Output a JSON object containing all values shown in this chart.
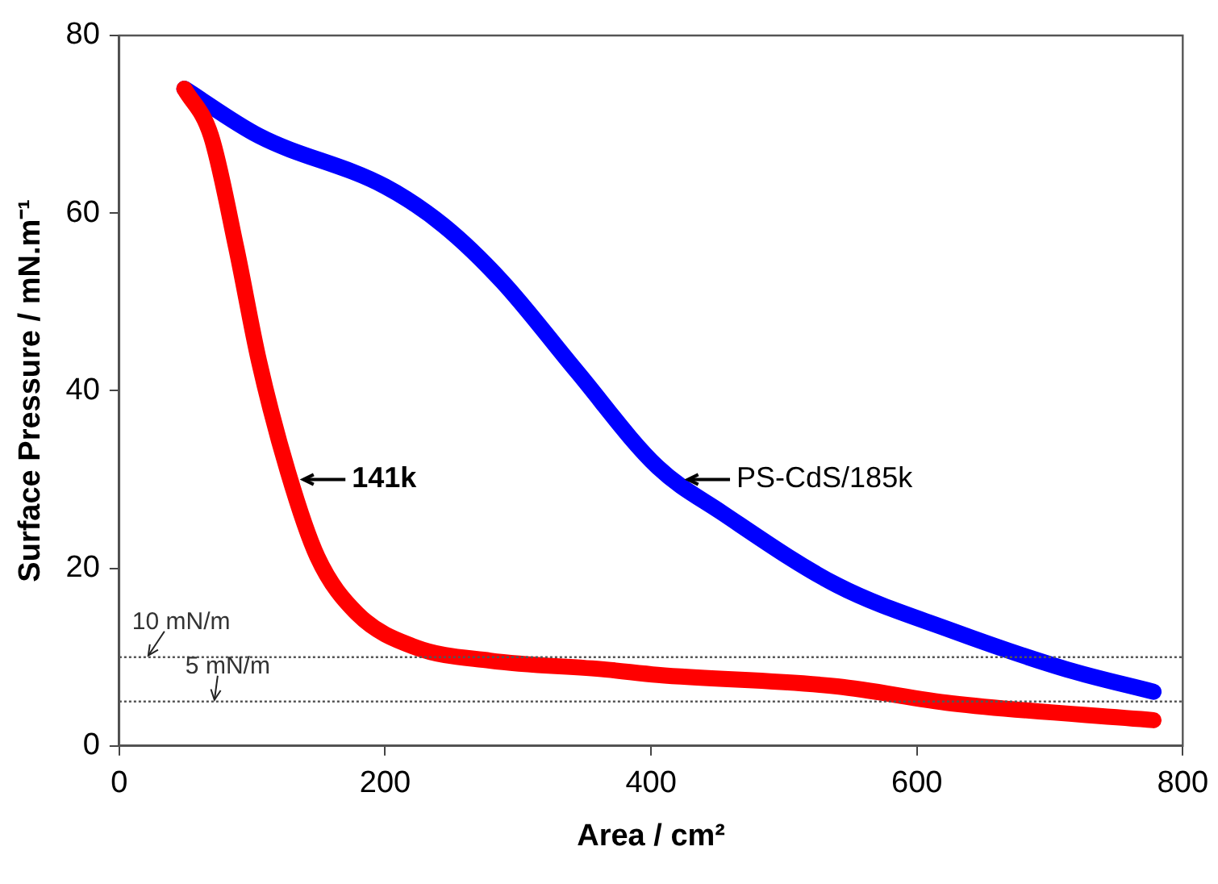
{
  "chart_data": {
    "type": "line",
    "xlabel": "Area / cm²",
    "ylabel": "Surface Pressure / mN.m⁻¹",
    "xlim": [
      0,
      800
    ],
    "xticks": [
      0,
      200,
      400,
      600,
      800
    ],
    "ylim": [
      0,
      80
    ],
    "yticks": [
      0,
      20,
      40,
      60,
      80
    ],
    "grid": false,
    "legend": false,
    "series": [
      {
        "name": "141k",
        "color": "#ff0000",
        "x": [
          49,
          69,
          88,
          105,
          127,
          149,
          179,
          223,
          279,
          366,
          405,
          540,
          626,
          778
        ],
        "values": [
          74,
          68.7,
          56.1,
          43.4,
          30.8,
          21.3,
          14.9,
          11.1,
          9.6,
          8.6,
          8.0,
          6.7,
          4.8,
          2.9
        ]
      },
      {
        "name": "PS-CdS/185k",
        "color": "#0000ff",
        "x": [
          49,
          105,
          200,
          244,
          288,
          344,
          405,
          453,
          540,
          626,
          713,
          778
        ],
        "values": [
          74,
          68.7,
          63,
          58.6,
          52.3,
          42.2,
          31.4,
          26.3,
          18.1,
          13.0,
          8.6,
          6.1
        ]
      }
    ],
    "ref_lines": [
      {
        "axis": "y",
        "value": 10,
        "label": "10 mN/m",
        "color": "#555555",
        "line_style": "dotted"
      },
      {
        "axis": "y",
        "value": 5,
        "label": "5 mN/m",
        "color": "#555555",
        "line_style": "dotted"
      }
    ]
  }
}
